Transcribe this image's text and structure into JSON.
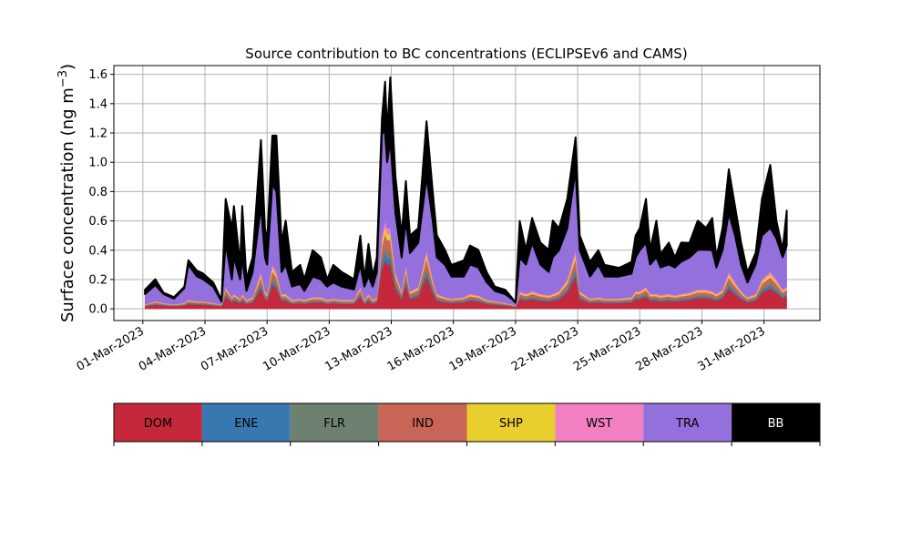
{
  "chart_data": {
    "type": "area",
    "stacked": true,
    "title": "Source contribution to BC concentrations (ECLIPSEv6 and CAMS)",
    "ylabel": "Surface concentration (ng m",
    "ylabel_sup": "−3",
    "ylabel_end": ")",
    "xlabel": "",
    "ylim": [
      -0.08,
      1.66
    ],
    "x_unit": "day of March 2023 (fractional)",
    "xlim": [
      -0.4,
      33.7
    ],
    "grid": true,
    "yticks": [
      0.0,
      0.2,
      0.4,
      0.6,
      0.8,
      1.0,
      1.2,
      1.4,
      1.6
    ],
    "ytick_labels": [
      "0.0",
      "0.2",
      "0.4",
      "0.6",
      "0.8",
      "1.0",
      "1.2",
      "1.4",
      "1.6"
    ],
    "xticks": [
      1,
      4,
      7,
      10,
      13,
      16,
      19,
      22,
      25,
      28,
      31
    ],
    "xtick_labels": [
      "01-Mar-2023",
      "04-Mar-2023",
      "07-Mar-2023",
      "10-Mar-2023",
      "13-Mar-2023",
      "16-Mar-2023",
      "19-Mar-2023",
      "22-Mar-2023",
      "25-Mar-2023",
      "28-Mar-2023",
      "31-Mar-2023"
    ],
    "legend_placement": "bottom colorbar",
    "x": [
      1.1,
      1.6,
      2.0,
      2.5,
      3.0,
      3.2,
      3.6,
      3.9,
      4.4,
      4.8,
      5.0,
      5.3,
      5.4,
      5.7,
      5.8,
      6.0,
      6.3,
      6.7,
      6.9,
      7.0,
      7.25,
      7.45,
      7.7,
      7.9,
      8.2,
      8.6,
      8.8,
      9.2,
      9.6,
      9.9,
      10.2,
      10.6,
      11.2,
      11.5,
      11.7,
      11.9,
      12.1,
      12.3,
      12.55,
      12.7,
      12.8,
      12.95,
      13.2,
      13.5,
      13.7,
      13.9,
      14.3,
      14.7,
      15.0,
      15.2,
      15.6,
      15.9,
      16.5,
      16.8,
      17.2,
      17.6,
      18.0,
      18.5,
      18.8,
      19.0,
      19.2,
      19.5,
      19.8,
      20.2,
      20.6,
      20.8,
      21.1,
      21.5,
      21.9,
      22.1,
      22.6,
      23.0,
      23.3,
      24.0,
      24.6,
      24.8,
      25.0,
      25.3,
      25.5,
      25.8,
      26.0,
      26.4,
      26.7,
      27.0,
      27.4,
      27.8,
      28.2,
      28.5,
      28.7,
      29.0,
      29.3,
      29.6,
      29.9,
      30.2,
      30.6,
      30.9,
      31.3,
      31.6,
      31.9,
      32.1
    ],
    "series": [
      {
        "name": "DOM",
        "color": "#c4283a",
        "values": [
          0.017,
          0.028,
          0.022,
          0.017,
          0.022,
          0.033,
          0.028,
          0.028,
          0.022,
          0.017,
          0.083,
          0.044,
          0.055,
          0.039,
          0.055,
          0.033,
          0.044,
          0.138,
          0.066,
          0.055,
          0.165,
          0.138,
          0.055,
          0.055,
          0.033,
          0.039,
          0.033,
          0.044,
          0.044,
          0.033,
          0.039,
          0.033,
          0.033,
          0.083,
          0.033,
          0.055,
          0.033,
          0.044,
          0.275,
          0.33,
          0.303,
          0.303,
          0.138,
          0.066,
          0.165,
          0.066,
          0.083,
          0.22,
          0.11,
          0.055,
          0.044,
          0.039,
          0.044,
          0.055,
          0.05,
          0.033,
          0.028,
          0.022,
          0.017,
          0.011,
          0.066,
          0.055,
          0.066,
          0.055,
          0.05,
          0.055,
          0.066,
          0.11,
          0.22,
          0.066,
          0.039,
          0.044,
          0.039,
          0.039,
          0.044,
          0.066,
          0.066,
          0.083,
          0.055,
          0.055,
          0.05,
          0.055,
          0.05,
          0.055,
          0.061,
          0.072,
          0.072,
          0.066,
          0.055,
          0.072,
          0.138,
          0.099,
          0.066,
          0.044,
          0.055,
          0.11,
          0.138,
          0.11,
          0.072,
          0.083
        ]
      },
      {
        "name": "ENE",
        "color": "#3878b0",
        "values": [
          0.002,
          0.004,
          0.003,
          0.002,
          0.003,
          0.005,
          0.004,
          0.004,
          0.003,
          0.002,
          0.011,
          0.006,
          0.008,
          0.005,
          0.008,
          0.005,
          0.006,
          0.019,
          0.009,
          0.008,
          0.023,
          0.019,
          0.008,
          0.008,
          0.005,
          0.005,
          0.005,
          0.006,
          0.006,
          0.005,
          0.005,
          0.005,
          0.005,
          0.011,
          0.005,
          0.008,
          0.005,
          0.006,
          0.038,
          0.045,
          0.041,
          0.041,
          0.019,
          0.009,
          0.023,
          0.009,
          0.011,
          0.03,
          0.015,
          0.008,
          0.006,
          0.005,
          0.006,
          0.008,
          0.007,
          0.005,
          0.004,
          0.003,
          0.002,
          0.002,
          0.009,
          0.008,
          0.009,
          0.008,
          0.007,
          0.008,
          0.009,
          0.015,
          0.03,
          0.009,
          0.005,
          0.006,
          0.005,
          0.005,
          0.006,
          0.009,
          0.009,
          0.011,
          0.008,
          0.008,
          0.007,
          0.008,
          0.007,
          0.008,
          0.008,
          0.01,
          0.01,
          0.009,
          0.008,
          0.01,
          0.019,
          0.014,
          0.009,
          0.006,
          0.008,
          0.015,
          0.019,
          0.015,
          0.01,
          0.011
        ]
      },
      {
        "name": "FLR",
        "color": "#6e8070",
        "values": [
          0.002,
          0.004,
          0.003,
          0.002,
          0.003,
          0.005,
          0.004,
          0.004,
          0.003,
          0.002,
          0.011,
          0.006,
          0.008,
          0.005,
          0.008,
          0.005,
          0.006,
          0.019,
          0.009,
          0.008,
          0.023,
          0.019,
          0.008,
          0.008,
          0.005,
          0.005,
          0.005,
          0.006,
          0.006,
          0.005,
          0.005,
          0.005,
          0.005,
          0.011,
          0.005,
          0.008,
          0.005,
          0.006,
          0.038,
          0.045,
          0.041,
          0.041,
          0.019,
          0.009,
          0.023,
          0.009,
          0.011,
          0.03,
          0.015,
          0.008,
          0.006,
          0.005,
          0.006,
          0.008,
          0.007,
          0.005,
          0.004,
          0.003,
          0.002,
          0.002,
          0.009,
          0.008,
          0.009,
          0.008,
          0.007,
          0.008,
          0.009,
          0.015,
          0.03,
          0.009,
          0.005,
          0.006,
          0.005,
          0.005,
          0.006,
          0.009,
          0.009,
          0.011,
          0.008,
          0.008,
          0.007,
          0.008,
          0.007,
          0.008,
          0.008,
          0.01,
          0.01,
          0.009,
          0.008,
          0.01,
          0.019,
          0.014,
          0.009,
          0.006,
          0.008,
          0.015,
          0.019,
          0.015,
          0.01,
          0.011
        ]
      },
      {
        "name": "IND",
        "color": "#c96556",
        "values": [
          0.005,
          0.008,
          0.006,
          0.005,
          0.006,
          0.009,
          0.008,
          0.008,
          0.006,
          0.005,
          0.023,
          0.012,
          0.015,
          0.011,
          0.015,
          0.009,
          0.012,
          0.038,
          0.018,
          0.015,
          0.045,
          0.038,
          0.015,
          0.015,
          0.009,
          0.011,
          0.009,
          0.012,
          0.012,
          0.009,
          0.011,
          0.009,
          0.009,
          0.023,
          0.009,
          0.015,
          0.009,
          0.012,
          0.075,
          0.09,
          0.083,
          0.083,
          0.038,
          0.018,
          0.045,
          0.018,
          0.023,
          0.06,
          0.03,
          0.015,
          0.012,
          0.011,
          0.012,
          0.015,
          0.014,
          0.009,
          0.008,
          0.006,
          0.005,
          0.003,
          0.018,
          0.015,
          0.018,
          0.015,
          0.014,
          0.015,
          0.018,
          0.03,
          0.06,
          0.018,
          0.011,
          0.012,
          0.011,
          0.011,
          0.012,
          0.018,
          0.018,
          0.023,
          0.015,
          0.015,
          0.014,
          0.015,
          0.014,
          0.015,
          0.017,
          0.02,
          0.02,
          0.018,
          0.015,
          0.02,
          0.038,
          0.027,
          0.018,
          0.012,
          0.015,
          0.03,
          0.038,
          0.03,
          0.02,
          0.023
        ]
      },
      {
        "name": "SHP",
        "color": "#e8cf2e",
        "values": [
          0.002,
          0.004,
          0.003,
          0.002,
          0.003,
          0.005,
          0.004,
          0.004,
          0.003,
          0.002,
          0.011,
          0.006,
          0.008,
          0.005,
          0.008,
          0.005,
          0.006,
          0.019,
          0.009,
          0.008,
          0.023,
          0.019,
          0.008,
          0.008,
          0.005,
          0.005,
          0.005,
          0.006,
          0.006,
          0.005,
          0.005,
          0.005,
          0.005,
          0.011,
          0.005,
          0.008,
          0.005,
          0.006,
          0.038,
          0.045,
          0.041,
          0.041,
          0.019,
          0.009,
          0.023,
          0.009,
          0.011,
          0.03,
          0.015,
          0.008,
          0.006,
          0.005,
          0.006,
          0.008,
          0.007,
          0.005,
          0.004,
          0.003,
          0.002,
          0.002,
          0.009,
          0.008,
          0.009,
          0.008,
          0.007,
          0.008,
          0.009,
          0.015,
          0.03,
          0.009,
          0.005,
          0.006,
          0.005,
          0.005,
          0.006,
          0.009,
          0.009,
          0.011,
          0.008,
          0.008,
          0.007,
          0.008,
          0.007,
          0.008,
          0.008,
          0.01,
          0.01,
          0.009,
          0.008,
          0.01,
          0.019,
          0.014,
          0.009,
          0.006,
          0.008,
          0.015,
          0.019,
          0.015,
          0.01,
          0.011
        ]
      },
      {
        "name": "WST",
        "color": "#f280c0",
        "values": [
          0.002,
          0.004,
          0.003,
          0.002,
          0.003,
          0.005,
          0.004,
          0.004,
          0.003,
          0.002,
          0.011,
          0.006,
          0.008,
          0.005,
          0.008,
          0.005,
          0.006,
          0.019,
          0.009,
          0.008,
          0.023,
          0.019,
          0.008,
          0.008,
          0.005,
          0.005,
          0.005,
          0.006,
          0.006,
          0.005,
          0.005,
          0.005,
          0.005,
          0.011,
          0.005,
          0.008,
          0.005,
          0.006,
          0.038,
          0.045,
          0.041,
          0.041,
          0.019,
          0.009,
          0.023,
          0.009,
          0.011,
          0.03,
          0.015,
          0.008,
          0.006,
          0.005,
          0.006,
          0.008,
          0.007,
          0.005,
          0.004,
          0.003,
          0.002,
          0.002,
          0.009,
          0.008,
          0.009,
          0.008,
          0.007,
          0.008,
          0.009,
          0.015,
          0.03,
          0.009,
          0.005,
          0.006,
          0.005,
          0.005,
          0.006,
          0.009,
          0.009,
          0.011,
          0.008,
          0.008,
          0.007,
          0.008,
          0.007,
          0.008,
          0.008,
          0.01,
          0.01,
          0.009,
          0.008,
          0.01,
          0.019,
          0.014,
          0.009,
          0.006,
          0.008,
          0.015,
          0.019,
          0.015,
          0.01,
          0.011
        ]
      },
      {
        "name": "TRA",
        "color": "#9370db",
        "values": [
          0.07,
          0.11,
          0.06,
          0.04,
          0.1,
          0.24,
          0.17,
          0.15,
          0.11,
          0.02,
          0.3,
          0.12,
          0.25,
          0.13,
          0.25,
          0.06,
          0.17,
          0.45,
          0.23,
          0.2,
          0.55,
          0.55,
          0.15,
          0.2,
          0.09,
          0.1,
          0.06,
          0.14,
          0.12,
          0.09,
          0.11,
          0.09,
          0.07,
          0.15,
          0.09,
          0.12,
          0.09,
          0.17,
          0.7,
          0.6,
          0.45,
          0.6,
          0.4,
          0.23,
          0.3,
          0.26,
          0.3,
          0.5,
          0.4,
          0.25,
          0.22,
          0.15,
          0.14,
          0.2,
          0.19,
          0.12,
          0.07,
          0.06,
          0.04,
          0.02,
          0.23,
          0.2,
          0.33,
          0.2,
          0.16,
          0.25,
          0.28,
          0.35,
          0.55,
          0.28,
          0.15,
          0.22,
          0.15,
          0.15,
          0.16,
          0.23,
          0.28,
          0.3,
          0.2,
          0.25,
          0.19,
          0.2,
          0.19,
          0.22,
          0.24,
          0.27,
          0.27,
          0.28,
          0.18,
          0.27,
          0.4,
          0.32,
          0.18,
          0.1,
          0.2,
          0.3,
          0.3,
          0.28,
          0.22,
          0.28
        ]
      },
      {
        "name": "BB",
        "color": "#000000",
        "values": [
          0.03,
          0.04,
          0.01,
          0.01,
          0.01,
          0.03,
          0.04,
          0.04,
          0.03,
          0.01,
          0.3,
          0.35,
          0.35,
          0.1,
          0.35,
          0.08,
          0.1,
          0.45,
          0.2,
          0.15,
          0.33,
          0.38,
          0.2,
          0.3,
          0.1,
          0.13,
          0.08,
          0.18,
          0.15,
          0.05,
          0.12,
          0.1,
          0.07,
          0.2,
          0.05,
          0.22,
          0.07,
          0.1,
          0.1,
          0.35,
          0.2,
          0.43,
          0.25,
          0.15,
          0.27,
          0.12,
          0.1,
          0.38,
          0.2,
          0.15,
          0.1,
          0.08,
          0.11,
          0.13,
          0.12,
          0.07,
          0.03,
          0.03,
          0.01,
          0.0,
          0.25,
          0.1,
          0.17,
          0.15,
          0.15,
          0.25,
          0.15,
          0.2,
          0.22,
          0.1,
          0.1,
          0.1,
          0.08,
          0.06,
          0.08,
          0.15,
          0.15,
          0.3,
          0.1,
          0.25,
          0.09,
          0.15,
          0.07,
          0.13,
          0.1,
          0.2,
          0.15,
          0.22,
          0.07,
          0.15,
          0.3,
          0.2,
          0.15,
          0.07,
          0.08,
          0.25,
          0.43,
          0.12,
          0.05,
          0.24
        ]
      }
    ]
  }
}
